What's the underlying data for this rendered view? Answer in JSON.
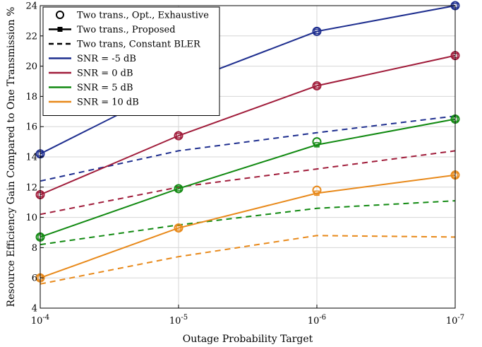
{
  "chart_data": {
    "type": "line",
    "title": "",
    "xlabel": "Outage Probability Target",
    "ylabel": "Resource Efficiency Gain Compared to One Transmission %",
    "x": [
      0.0001,
      1e-05,
      1e-06,
      1e-07
    ],
    "x_tick_labels": [
      {
        "base": "10",
        "exp": "-4"
      },
      {
        "base": "10",
        "exp": "-5"
      },
      {
        "base": "10",
        "exp": "-6"
      },
      {
        "base": "10",
        "exp": "-7"
      }
    ],
    "x_scale": "log-reversed",
    "ylim": [
      4,
      24
    ],
    "y_ticks": [
      4,
      6,
      8,
      10,
      12,
      14,
      16,
      18,
      20,
      22,
      24
    ],
    "grid": true,
    "legend_position": "top-left",
    "legend": [
      {
        "label": "Two trans., Opt., Exhaustive",
        "style": "circle-marker"
      },
      {
        "label": "Two trans., Proposed",
        "style": "solid-square-marker"
      },
      {
        "label": "Two trans, Constant BLER",
        "style": "dashed"
      },
      {
        "label": "SNR = -5 dB",
        "color": "#1f2f8f"
      },
      {
        "label": "SNR = 0 dB",
        "color": "#a01c3a"
      },
      {
        "label": "SNR = 5 dB",
        "color": "#128a12"
      },
      {
        "label": "SNR = 10 dB",
        "color": "#e8891a"
      }
    ],
    "series": [
      {
        "snr": "SNR = -5 dB",
        "color": "#1f2f8f",
        "exhaustive": [
          14.2,
          18.8,
          22.3,
          24.0
        ],
        "proposed": [
          14.2,
          18.8,
          22.3,
          24.0
        ],
        "constant_bler": [
          12.4,
          14.4,
          15.6,
          16.7
        ]
      },
      {
        "snr": "SNR = 0 dB",
        "color": "#a01c3a",
        "exhaustive": [
          11.5,
          15.4,
          18.7,
          20.7
        ],
        "proposed": [
          11.5,
          15.4,
          18.7,
          20.7
        ],
        "constant_bler": [
          10.2,
          12.0,
          13.2,
          14.4
        ]
      },
      {
        "snr": "SNR = 5 dB",
        "color": "#128a12",
        "exhaustive": [
          8.7,
          11.9,
          15.0,
          16.5
        ],
        "proposed": [
          8.7,
          11.9,
          14.8,
          16.5
        ],
        "constant_bler": [
          8.2,
          9.5,
          10.6,
          11.1
        ]
      },
      {
        "snr": "SNR = 10 dB",
        "color": "#e8891a",
        "exhaustive": [
          6.0,
          9.3,
          11.8,
          12.8
        ],
        "proposed": [
          6.0,
          9.3,
          11.6,
          12.8
        ],
        "constant_bler": [
          5.6,
          7.4,
          8.8,
          8.7
        ]
      }
    ]
  }
}
